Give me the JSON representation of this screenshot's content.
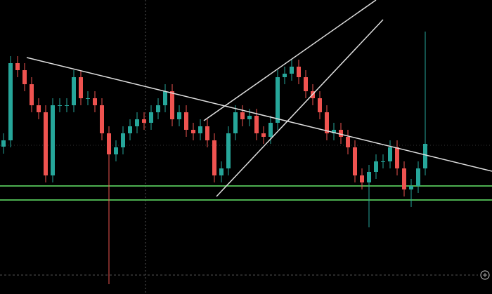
{
  "chart_data": {
    "type": "candlestick",
    "open": [
      210,
      219,
      329,
      319,
      299,
      269,
      259,
      169,
      269,
      269,
      269,
      309,
      279,
      279,
      269,
      229,
      199,
      209,
      229,
      239,
      249,
      244,
      259,
      269,
      289,
      249,
      259,
      234,
      229,
      239,
      219,
      169,
      179,
      229,
      259,
      249,
      254,
      229,
      224,
      244,
      309,
      314,
      324,
      309,
      289,
      279,
      259,
      229,
      234,
      224,
      209,
      169,
      159,
      174,
      189,
      189,
      209,
      179,
      149,
      154,
      179
    ],
    "high": [
      229,
      339,
      339,
      329,
      309,
      279,
      269,
      279,
      279,
      279,
      319,
      319,
      289,
      289,
      279,
      239,
      219,
      239,
      249,
      259,
      259,
      269,
      279,
      299,
      299,
      269,
      269,
      244,
      249,
      249,
      229,
      189,
      239,
      269,
      269,
      264,
      264,
      239,
      254,
      319,
      324,
      334,
      334,
      319,
      299,
      289,
      269,
      244,
      244,
      234,
      219,
      179,
      184,
      199,
      199,
      219,
      219,
      189,
      164,
      189,
      374
    ],
    "low": [
      200,
      209,
      309,
      289,
      259,
      249,
      159,
      159,
      259,
      259,
      259,
      269,
      269,
      259,
      219,
      14,
      189,
      199,
      219,
      229,
      234,
      234,
      249,
      259,
      239,
      239,
      224,
      219,
      219,
      209,
      159,
      159,
      169,
      219,
      239,
      239,
      219,
      214,
      214,
      234,
      299,
      304,
      299,
      279,
      269,
      249,
      219,
      219,
      214,
      199,
      159,
      149,
      95,
      164,
      179,
      179,
      169,
      139,
      124,
      144,
      169
    ],
    "close": [
      219,
      329,
      319,
      299,
      269,
      259,
      169,
      269,
      269,
      269,
      309,
      279,
      279,
      269,
      229,
      199,
      209,
      229,
      239,
      249,
      244,
      259,
      269,
      289,
      249,
      259,
      234,
      229,
      239,
      219,
      169,
      179,
      229,
      259,
      249,
      254,
      229,
      224,
      244,
      309,
      314,
      324,
      309,
      289,
      279,
      259,
      229,
      234,
      224,
      209,
      169,
      159,
      174,
      189,
      189,
      209,
      179,
      149,
      154,
      179,
      214
    ],
    "up_color": "#26a69a",
    "down_color": "#ef5350",
    "xlim": [
      -0.5,
      69.5
    ],
    "ylim": [
      0,
      419
    ],
    "hlines": [
      154,
      134
    ],
    "hline_color": "#4caf50",
    "trendlines": [
      [
        3.3,
        337,
        69.5,
        175
      ],
      [
        28.5,
        247,
        53,
        419
      ],
      [
        30.3,
        139,
        54,
        391
      ]
    ],
    "trendline_color": "#e0e0e0"
  }
}
